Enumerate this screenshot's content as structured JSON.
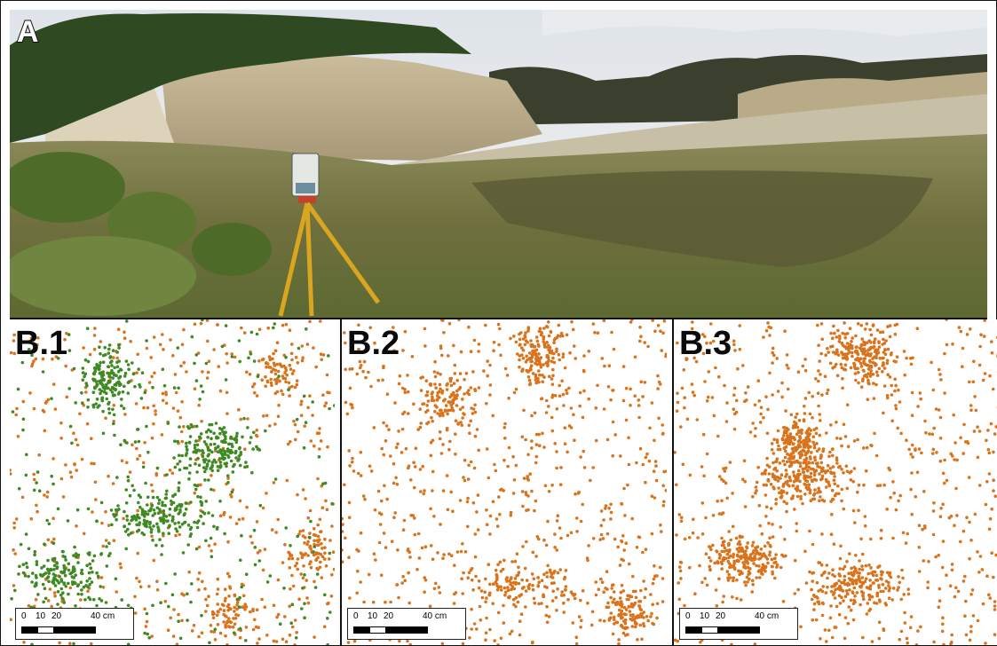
{
  "figure": {
    "panel_a": {
      "label": "A"
    },
    "panels": [
      {
        "label": "B.1",
        "series": [
          "orange",
          "green"
        ]
      },
      {
        "label": "B.2",
        "series": [
          "orange"
        ]
      },
      {
        "label": "B.3",
        "series": [
          "orange"
        ]
      }
    ],
    "scalebar": {
      "ticks": [
        "0",
        "10",
        "20",
        "40 cm"
      ]
    }
  },
  "colors": {
    "orange_points": "#d9731c",
    "green_points": "#3f8a23",
    "panel_border": "#111111"
  }
}
